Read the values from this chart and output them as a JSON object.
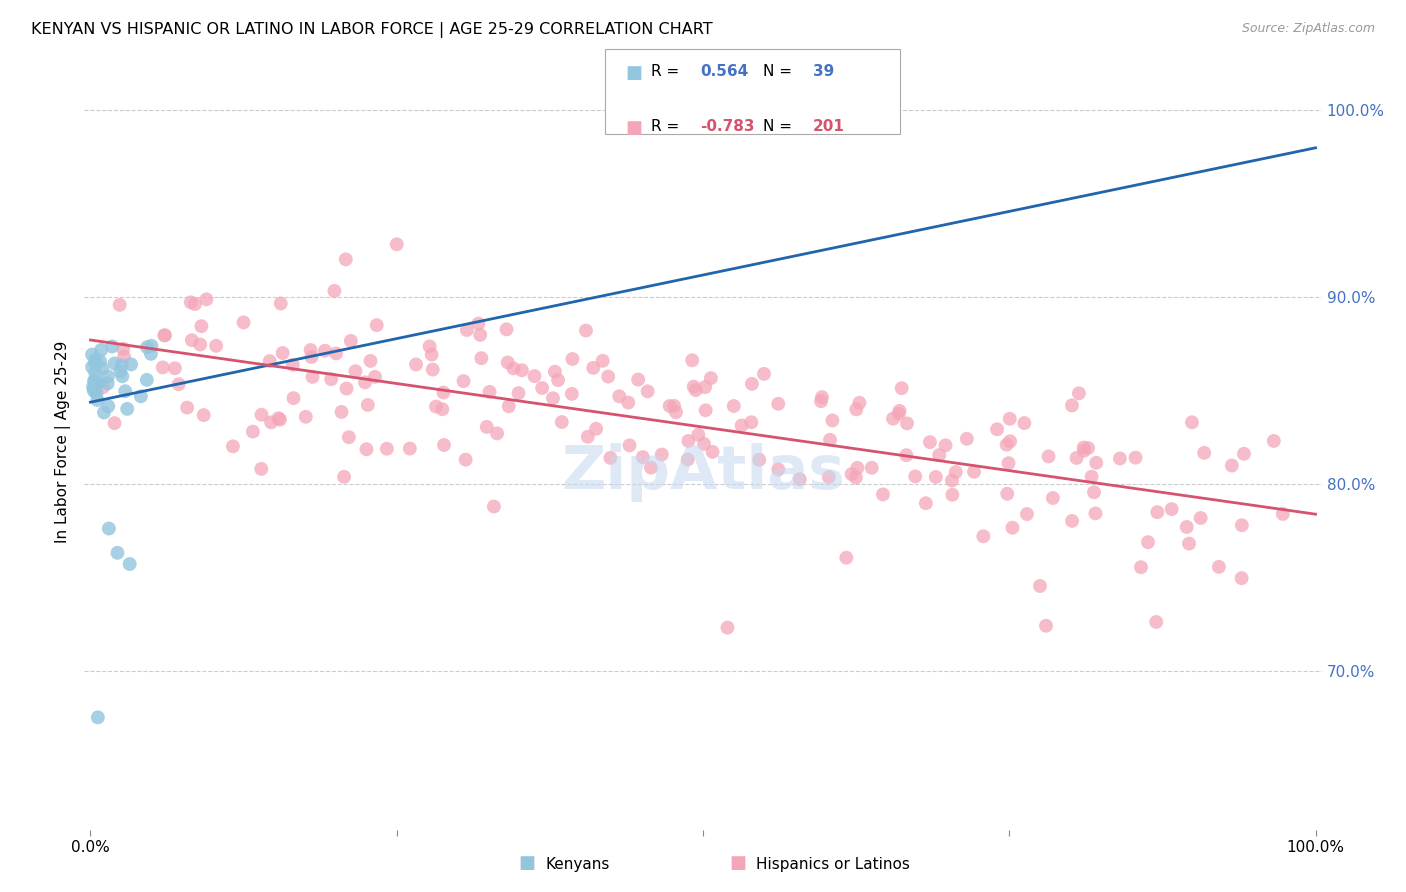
{
  "title": "KENYAN VS HISPANIC OR LATINO IN LABOR FORCE | AGE 25-29 CORRELATION CHART",
  "source": "Source: ZipAtlas.com",
  "ylabel": "In Labor Force | Age 25-29",
  "y_tick_values": [
    0.7,
    0.8,
    0.9,
    1.0
  ],
  "y_tick_labels": [
    "70.0%",
    "80.0%",
    "90.0%",
    "100.0%"
  ],
  "x_lim": [
    -0.005,
    1.005
  ],
  "y_lim": [
    0.615,
    1.03
  ],
  "legend_blue_r": "0.564",
  "legend_blue_n": "39",
  "legend_pink_r": "-0.783",
  "legend_pink_n": "201",
  "blue_color": "#92c5de",
  "pink_color": "#f4a6b8",
  "blue_line_color": "#2166ac",
  "pink_line_color": "#d6536d",
  "grid_color": "#cccccc",
  "watermark_color": "#c5d8ef",
  "blue_n": 39,
  "pink_n": 201
}
